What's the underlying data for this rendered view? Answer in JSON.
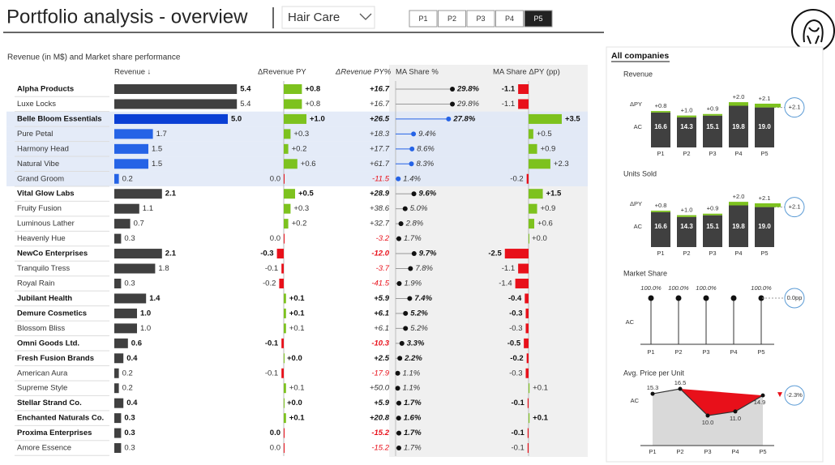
{
  "header": {
    "title": "Portfolio analysis - overview",
    "dropdown": "Hair Care",
    "periods": [
      "P1",
      "P2",
      "P3",
      "P4",
      "P5"
    ],
    "selected_period": 4
  },
  "table": {
    "subtitle": "Revenue (in M$) and Market share performance",
    "columns": [
      "Revenue ↓",
      "ΔRevenue PY",
      "ΔRevenue PY%",
      "MA Share %",
      "MA Share ΔPY (pp)"
    ],
    "rows": [
      {
        "name": "Alpha Products",
        "bold": true,
        "revenue": 5.4,
        "revenue_label": "5.4",
        "d_rev": 0.8,
        "d_rev_label": "+0.8",
        "d_rev_pct": 16.7,
        "d_rev_pct_label": "+16.7",
        "share": 29.8,
        "share_label": "29.8%",
        "d_share": -1.1,
        "d_share_label": "-1.1"
      },
      {
        "name": "Luxe Locks",
        "bold": false,
        "revenue": 5.4,
        "revenue_label": "5.4",
        "d_rev": 0.8,
        "d_rev_label": "+0.8",
        "d_rev_pct": 16.7,
        "d_rev_pct_label": "+16.7",
        "share": 29.8,
        "share_label": "29.8%",
        "d_share": -1.1,
        "d_share_label": "-1.1"
      },
      {
        "name": "Belle Bloom Essentials",
        "bold": true,
        "highlighted": true,
        "revenue": 5.0,
        "revenue_label": "5.0",
        "d_rev": 1.0,
        "d_rev_label": "+1.0",
        "d_rev_pct": 26.5,
        "d_rev_pct_label": "+26.5",
        "share": 27.8,
        "share_label": "27.8%",
        "d_share": 3.5,
        "d_share_label": "+3.5"
      },
      {
        "name": "Pure Petal",
        "bold": false,
        "highlighted": true,
        "revenue": 1.7,
        "revenue_label": "1.7",
        "d_rev": 0.3,
        "d_rev_label": "+0.3",
        "d_rev_pct": 18.3,
        "d_rev_pct_label": "+18.3",
        "share": 9.4,
        "share_label": "9.4%",
        "d_share": 0.5,
        "d_share_label": "+0.5"
      },
      {
        "name": "Harmony Head",
        "bold": false,
        "highlighted": true,
        "revenue": 1.5,
        "revenue_label": "1.5",
        "d_rev": 0.2,
        "d_rev_label": "+0.2",
        "d_rev_pct": 17.7,
        "d_rev_pct_label": "+17.7",
        "share": 8.6,
        "share_label": "8.6%",
        "d_share": 0.9,
        "d_share_label": "+0.9"
      },
      {
        "name": "Natural Vibe",
        "bold": false,
        "highlighted": true,
        "revenue": 1.5,
        "revenue_label": "1.5",
        "d_rev": 0.6,
        "d_rev_label": "+0.6",
        "d_rev_pct": 61.7,
        "d_rev_pct_label": "+61.7",
        "share": 8.3,
        "share_label": "8.3%",
        "d_share": 2.3,
        "d_share_label": "+2.3"
      },
      {
        "name": "Grand Groom",
        "bold": false,
        "highlighted": true,
        "revenue": 0.2,
        "revenue_label": "0.2",
        "d_rev": 0,
        "d_rev_label": "0.0",
        "d_rev_pct": -11.5,
        "d_rev_pct_label": "-11.5",
        "share": 1.4,
        "share_label": "1.4%",
        "d_share": -0.2,
        "d_share_label": "-0.2"
      },
      {
        "name": "Vital Glow Labs",
        "bold": true,
        "revenue": 2.1,
        "revenue_label": "2.1",
        "d_rev": 0.5,
        "d_rev_label": "+0.5",
        "d_rev_pct": 28.9,
        "d_rev_pct_label": "+28.9",
        "share": 9.6,
        "share_label": "9.6%",
        "d_share": 1.5,
        "d_share_label": "+1.5"
      },
      {
        "name": "Fruity Fusion",
        "bold": false,
        "revenue": 1.1,
        "revenue_label": "1.1",
        "d_rev": 0.3,
        "d_rev_label": "+0.3",
        "d_rev_pct": 38.6,
        "d_rev_pct_label": "+38.6",
        "share": 5.0,
        "share_label": "5.0%",
        "d_share": 0.9,
        "d_share_label": "+0.9"
      },
      {
        "name": "Luminous Lather",
        "bold": false,
        "revenue": 0.7,
        "revenue_label": "0.7",
        "d_rev": 0.2,
        "d_rev_label": "+0.2",
        "d_rev_pct": 32.7,
        "d_rev_pct_label": "+32.7",
        "share": 2.8,
        "share_label": "2.8%",
        "d_share": 0.6,
        "d_share_label": "+0.6"
      },
      {
        "name": "Heavenly Hue",
        "bold": false,
        "revenue": 0.3,
        "revenue_label": "0.3",
        "d_rev": 0,
        "d_rev_label": "0.0",
        "d_rev_pct": -3.2,
        "d_rev_pct_label": "-3.2",
        "share": 1.7,
        "share_label": "1.7%",
        "d_share": 0,
        "d_share_label": "+0.0"
      },
      {
        "name": "NewCo Enterprises",
        "bold": true,
        "revenue": 2.1,
        "revenue_label": "2.1",
        "d_rev": -0.3,
        "d_rev_label": "-0.3",
        "d_rev_pct": -12.0,
        "d_rev_pct_label": "-12.0",
        "share": 9.7,
        "share_label": "9.7%",
        "d_share": -2.5,
        "d_share_label": "-2.5"
      },
      {
        "name": "Tranquilo Tress",
        "bold": false,
        "revenue": 1.8,
        "revenue_label": "1.8",
        "d_rev": -0.1,
        "d_rev_label": "-0.1",
        "d_rev_pct": -3.7,
        "d_rev_pct_label": "-3.7",
        "share": 7.8,
        "share_label": "7.8%",
        "d_share": -1.1,
        "d_share_label": "-1.1"
      },
      {
        "name": "Royal Rain",
        "bold": false,
        "revenue": 0.3,
        "revenue_label": "0.3",
        "d_rev": -0.2,
        "d_rev_label": "-0.2",
        "d_rev_pct": -41.5,
        "d_rev_pct_label": "-41.5",
        "share": 1.9,
        "share_label": "1.9%",
        "d_share": -1.4,
        "d_share_label": "-1.4"
      },
      {
        "name": "Jubilant Health",
        "bold": true,
        "revenue": 1.4,
        "revenue_label": "1.4",
        "d_rev": 0.1,
        "d_rev_label": "+0.1",
        "d_rev_pct": 5.9,
        "d_rev_pct_label": "+5.9",
        "share": 7.4,
        "share_label": "7.4%",
        "d_share": -0.4,
        "d_share_label": "-0.4"
      },
      {
        "name": "Demure Cosmetics",
        "bold": true,
        "revenue": 1.0,
        "revenue_label": "1.0",
        "d_rev": 0.1,
        "d_rev_label": "+0.1",
        "d_rev_pct": 6.1,
        "d_rev_pct_label": "+6.1",
        "share": 5.2,
        "share_label": "5.2%",
        "d_share": -0.3,
        "d_share_label": "-0.3"
      },
      {
        "name": "Blossom Bliss",
        "bold": false,
        "revenue": 1.0,
        "revenue_label": "1.0",
        "d_rev": 0.1,
        "d_rev_label": "+0.1",
        "d_rev_pct": 6.1,
        "d_rev_pct_label": "+6.1",
        "share": 5.2,
        "share_label": "5.2%",
        "d_share": -0.3,
        "d_share_label": "-0.3"
      },
      {
        "name": "Omni Goods Ltd.",
        "bold": true,
        "revenue": 0.6,
        "revenue_label": "0.6",
        "d_rev": -0.1,
        "d_rev_label": "-0.1",
        "d_rev_pct": -10.3,
        "d_rev_pct_label": "-10.3",
        "share": 3.3,
        "share_label": "3.3%",
        "d_share": -0.5,
        "d_share_label": "-0.5"
      },
      {
        "name": "Fresh Fusion Brands",
        "bold": true,
        "revenue": 0.4,
        "revenue_label": "0.4",
        "d_rev": 0,
        "d_rev_label": "+0.0",
        "d_rev_pct": 2.5,
        "d_rev_pct_label": "+2.5",
        "share": 2.2,
        "share_label": "2.2%",
        "d_share": -0.2,
        "d_share_label": "-0.2"
      },
      {
        "name": "American Aura",
        "bold": false,
        "revenue": 0.2,
        "revenue_label": "0.2",
        "d_rev": -0.1,
        "d_rev_label": "-0.1",
        "d_rev_pct": -17.9,
        "d_rev_pct_label": "-17.9",
        "share": 1.1,
        "share_label": "1.1%",
        "d_share": -0.3,
        "d_share_label": "-0.3"
      },
      {
        "name": "Supreme Style",
        "bold": false,
        "revenue": 0.2,
        "revenue_label": "0.2",
        "d_rev": 0.1,
        "d_rev_label": "+0.1",
        "d_rev_pct": 50.0,
        "d_rev_pct_label": "+50.0",
        "share": 1.1,
        "share_label": "1.1%",
        "d_share": 0.1,
        "d_share_label": "+0.1"
      },
      {
        "name": "Stellar Strand Co.",
        "bold": true,
        "revenue": 0.4,
        "revenue_label": "0.4",
        "d_rev": 0,
        "d_rev_label": "+0.0",
        "d_rev_pct": 5.9,
        "d_rev_pct_label": "+5.9",
        "share": 1.7,
        "share_label": "1.7%",
        "d_share": -0.1,
        "d_share_label": "-0.1"
      },
      {
        "name": "Enchanted Naturals Co.",
        "bold": true,
        "revenue": 0.3,
        "revenue_label": "0.3",
        "d_rev": 0.1,
        "d_rev_label": "+0.1",
        "d_rev_pct": 20.8,
        "d_rev_pct_label": "+20.8",
        "share": 1.6,
        "share_label": "1.6%",
        "d_share": 0.1,
        "d_share_label": "+0.1"
      },
      {
        "name": "Proxima Enterprises",
        "bold": true,
        "revenue": 0.3,
        "revenue_label": "0.3",
        "d_rev": 0,
        "d_rev_label": "0.0",
        "d_rev_pct": -15.2,
        "d_rev_pct_label": "-15.2",
        "share": 1.7,
        "share_label": "1.7%",
        "d_share": -0.1,
        "d_share_label": "-0.1"
      },
      {
        "name": "Amore Essence",
        "bold": false,
        "revenue": 0.3,
        "revenue_label": "0.3",
        "d_rev": 0,
        "d_rev_label": "0.0",
        "d_rev_pct": -15.2,
        "d_rev_pct_label": "-15.2",
        "share": 1.7,
        "share_label": "1.7%",
        "d_share": -0.1,
        "d_share_label": "-0.1"
      }
    ]
  },
  "panel": {
    "title": "All companies",
    "charts": [
      {
        "title": "Revenue",
        "type": "bar",
        "row_labels": [
          "ΔPY",
          "AC"
        ],
        "categories": [
          "P1",
          "P2",
          "P3",
          "P4",
          "P5"
        ],
        "values": [
          16.6,
          14.3,
          15.1,
          19.8,
          19.0
        ],
        "value_labels": [
          "16.6",
          "14.3",
          "15.1",
          "19.8",
          "19.0"
        ],
        "deltas": [
          0.8,
          1.0,
          0.9,
          2.0,
          2.1
        ],
        "delta_labels": [
          "+0.8",
          "+1.0",
          "+0.9",
          "+2.0",
          "+2.1"
        ],
        "total": 2.1,
        "total_label": "+2.1"
      },
      {
        "title": "Units Sold",
        "type": "bar",
        "row_labels": [
          "ΔPY",
          "AC"
        ],
        "categories": [
          "P1",
          "P2",
          "P3",
          "P4",
          "P5"
        ],
        "values": [
          16.6,
          14.3,
          15.1,
          19.8,
          19.0
        ],
        "value_labels": [
          "16.6",
          "14.3",
          "15.1",
          "19.8",
          "19.0"
        ],
        "deltas": [
          0.8,
          1.0,
          0.9,
          2.0,
          2.1
        ],
        "delta_labels": [
          "+0.8",
          "+1.0",
          "+0.9",
          "+2.0",
          "+2.1"
        ],
        "total": 2.1,
        "total_label": "+2.1"
      },
      {
        "title": "Market Share",
        "type": "lollipop",
        "row_labels": [
          "AC"
        ],
        "categories": [
          "P1",
          "P2",
          "P3",
          "P4",
          "P5"
        ],
        "values": [
          100,
          100,
          100,
          100,
          100
        ],
        "value_labels": [
          "100.0%",
          "100.0%",
          "100.0%",
          null,
          "100.0%"
        ],
        "total": 0,
        "total_label": "0.0pp"
      },
      {
        "title": "Avg. Price per Unit",
        "type": "line",
        "row_labels": [
          "AC"
        ],
        "categories": [
          "P1",
          "P2",
          "P3",
          "P4",
          "P5"
        ],
        "values": [
          15.3,
          16.5,
          10.0,
          11.0,
          14.9
        ],
        "value_labels": [
          "15.3",
          "16.5",
          "10.0",
          "11.0",
          "14.9"
        ],
        "total": -2.3,
        "total_label": "-2.3%"
      }
    ]
  }
}
